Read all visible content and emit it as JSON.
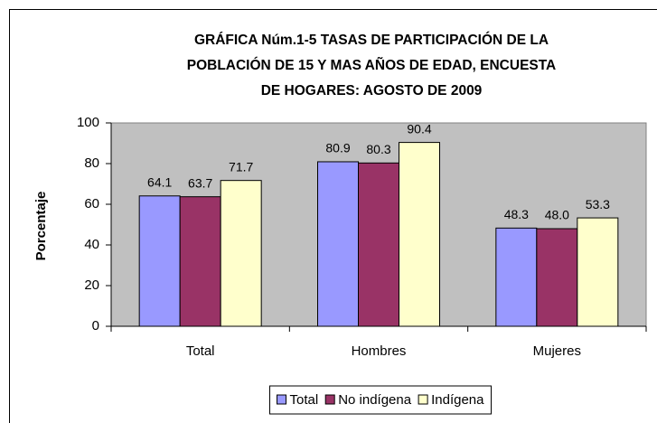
{
  "chart_data": {
    "type": "bar",
    "title": [
      "GRÁFICA Núm.1-5  TASAS DE PARTICIPACIÓN DE LA",
      "POBLACIÓN DE 15 Y MAS AÑOS DE EDAD, ENCUESTA",
      "DE HOGARES:  AGOSTO DE 2009"
    ],
    "y_label": "Porcentaje",
    "categories": [
      "Total",
      "Hombres",
      "Mujeres"
    ],
    "series": [
      {
        "name": "Total",
        "color": "#9999ff",
        "values": [
          64.1,
          80.9,
          48.3
        ]
      },
      {
        "name": "No indígena",
        "color": "#993366",
        "values": [
          63.7,
          80.3,
          48.0
        ],
        "value_labels": [
          "63.7",
          "80.3",
          "48.0"
        ]
      },
      {
        "name": "Indígena",
        "color": "#ffffcc",
        "values": [
          71.7,
          90.4,
          53.3
        ]
      }
    ],
    "ylim": [
      0,
      100
    ],
    "yticks": [
      0,
      20,
      40,
      60,
      80,
      100
    ],
    "grid": false,
    "plot_background": "#c0c0c0",
    "legend": "bottom"
  }
}
